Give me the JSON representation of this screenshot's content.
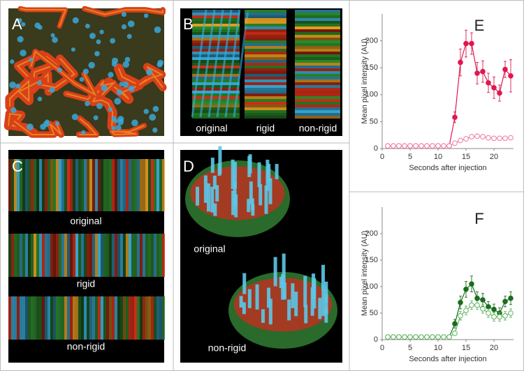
{
  "panels": [
    {
      "label": "A"
    },
    {
      "label": "B",
      "captions": [
        "original",
        "rigid",
        "non-rigid"
      ]
    },
    {
      "label": "C",
      "captions": [
        "original",
        "rigid",
        "non-rigid"
      ]
    },
    {
      "label": "D",
      "captions": [
        "original",
        "non-rigid"
      ]
    }
  ],
  "chart_data": [
    {
      "type": "line",
      "label": "E",
      "xlabel": "Seconds after injection",
      "ylabel": "Mean pixel intensity (AU)",
      "x": [
        1,
        2,
        3,
        4,
        5,
        6,
        7,
        8,
        9,
        10,
        11,
        12,
        13,
        14,
        15,
        16,
        17,
        18,
        19,
        20,
        21,
        22,
        23
      ],
      "xlim": [
        0,
        23.5
      ],
      "xticks": [
        0,
        5,
        10,
        15,
        20
      ],
      "ylim": [
        0,
        250
      ],
      "yticks": [
        0,
        50,
        100,
        150,
        200
      ],
      "series": [
        {
          "color": "#e0174f",
          "marker": "filled",
          "values": [
            5,
            5,
            5,
            5,
            5,
            5,
            5,
            5,
            5,
            5,
            5,
            5,
            58,
            160,
            195,
            195,
            140,
            143,
            122,
            113,
            103,
            147,
            135
          ],
          "errors": [
            1,
            1,
            1,
            1,
            1,
            1,
            1,
            1,
            1,
            1,
            1,
            2,
            10,
            25,
            25,
            20,
            20,
            20,
            18,
            20,
            15,
            15,
            30
          ]
        },
        {
          "color": "#f07aa0",
          "marker": "open",
          "values": [
            5,
            5,
            5,
            5,
            5,
            5,
            5,
            5,
            5,
            5,
            5,
            5,
            10,
            15,
            18,
            22,
            23,
            22,
            20,
            19,
            19,
            19,
            20
          ],
          "errors": [
            1,
            1,
            1,
            1,
            1,
            1,
            1,
            1,
            1,
            1,
            1,
            1,
            3,
            4,
            4,
            4,
            4,
            4,
            4,
            3,
            3,
            3,
            3
          ]
        }
      ]
    },
    {
      "type": "line",
      "label": "F",
      "xlabel": "Seconds after injection",
      "ylabel": "Mean pixel intensity (AU)",
      "x": [
        1,
        2,
        3,
        4,
        5,
        6,
        7,
        8,
        9,
        10,
        11,
        12,
        13,
        14,
        15,
        16,
        17,
        18,
        19,
        20,
        21,
        22,
        23
      ],
      "xlim": [
        0,
        23.5
      ],
      "xticks": [
        0,
        5,
        10,
        15,
        20
      ],
      "ylim": [
        0,
        250
      ],
      "yticks": [
        0,
        50,
        100,
        150,
        200
      ],
      "series": [
        {
          "color": "#1a6e1a",
          "marker": "filled",
          "values": [
            5,
            5,
            5,
            5,
            5,
            5,
            5,
            5,
            5,
            5,
            5,
            5,
            30,
            70,
            95,
            105,
            78,
            75,
            62,
            57,
            50,
            72,
            78
          ],
          "errors": [
            1,
            1,
            1,
            1,
            1,
            1,
            1,
            1,
            1,
            1,
            1,
            1,
            8,
            12,
            15,
            15,
            12,
            12,
            10,
            10,
            10,
            10,
            12
          ]
        },
        {
          "color": "#5fb35f",
          "marker": "open",
          "values": [
            5,
            5,
            5,
            5,
            5,
            5,
            5,
            5,
            5,
            5,
            5,
            5,
            12,
            45,
            55,
            65,
            65,
            58,
            50,
            43,
            43,
            45,
            50
          ],
          "errors": [
            1,
            1,
            1,
            1,
            1,
            1,
            1,
            1,
            1,
            1,
            1,
            1,
            4,
            8,
            8,
            8,
            8,
            8,
            8,
            8,
            8,
            8,
            8
          ]
        }
      ]
    }
  ]
}
